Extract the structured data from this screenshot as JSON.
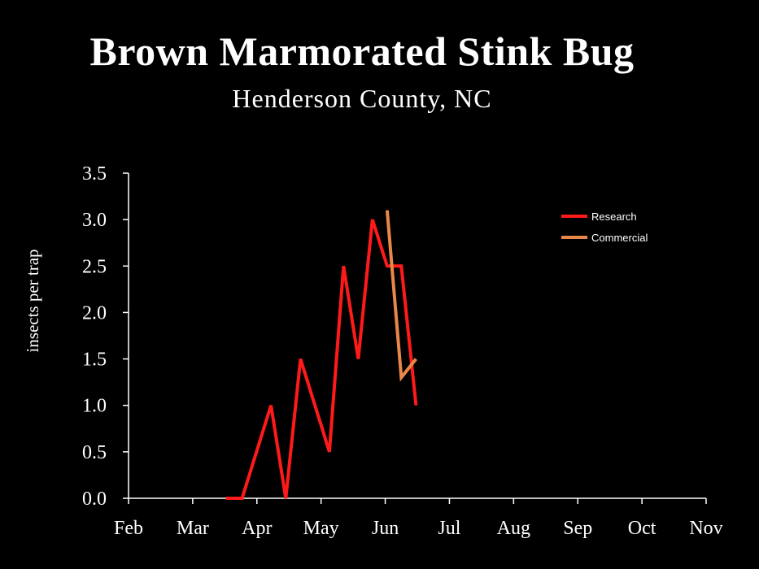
{
  "chart_data": {
    "type": "line",
    "title": "Brown Marmorated Stink Bug",
    "subtitle": "Henderson County, NC",
    "xlabel": "",
    "ylabel": "insects per trap",
    "categories": [
      "Feb",
      "Mar",
      "Apr",
      "May",
      "Jun",
      "Jul",
      "Aug",
      "Sep",
      "Oct",
      "Nov"
    ],
    "xlim": [
      0,
      9
    ],
    "ylim": [
      0,
      3.5
    ],
    "yticks": [
      "0.0",
      "0.5",
      "1.0",
      "1.5",
      "2.0",
      "2.5",
      "3.0",
      "3.5"
    ],
    "grid": false,
    "legend_position": "top-right",
    "series": [
      {
        "name": "Research",
        "color": "#ff1a1a",
        "points": [
          [
            1.52,
            0.0
          ],
          [
            1.77,
            0.0
          ],
          [
            2.22,
            1.0
          ],
          [
            2.45,
            0.0
          ],
          [
            2.68,
            1.5
          ],
          [
            3.13,
            0.5
          ],
          [
            3.35,
            2.5
          ],
          [
            3.58,
            1.5
          ],
          [
            3.8,
            3.0
          ],
          [
            4.03,
            2.5
          ],
          [
            4.25,
            2.5
          ],
          [
            4.48,
            1.0
          ]
        ]
      },
      {
        "name": "Commercial",
        "color": "#e8874a",
        "points": [
          [
            4.03,
            3.1
          ],
          [
            4.25,
            1.3
          ],
          [
            4.48,
            1.5
          ]
        ]
      }
    ]
  }
}
